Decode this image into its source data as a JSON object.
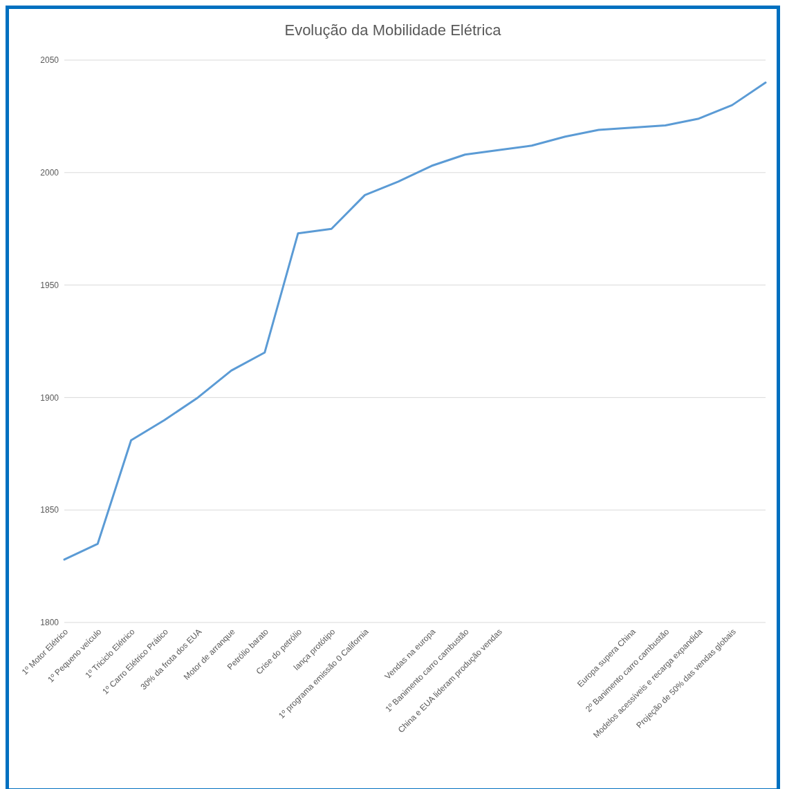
{
  "chart_data": {
    "type": "line",
    "title": "Evolução da Mobilidade Elétrica",
    "categories": [
      "1º Motor Elétrico",
      "1º Pequeno veículo",
      "1º Triciclo Elétrico",
      "1º Carro Elétrico Prático",
      "30% da frota dos EUA",
      "Motor de arranque",
      "Petrólio barato",
      "Crise do petrólio",
      "lança protótipo",
      "1º programa emissão 0 California",
      null,
      "Vendas na europa",
      "1º Banimento carro cambustão",
      "China e EUA lideram produção vendas",
      null,
      null,
      null,
      "Europa supera China",
      "2º Banimento carro cambustão",
      "Modelos acessíveis e recarga expandida",
      "Projeção de 50% das vendas globais",
      null
    ],
    "values": [
      1828,
      1835,
      1881,
      1890,
      1900,
      1912,
      1920,
      1973,
      1975,
      1990,
      1996,
      2003,
      2008,
      2010,
      2012,
      2016,
      2019,
      2020,
      2021,
      2024,
      2030,
      2040
    ],
    "color": "#5b9bd5",
    "ylim": [
      1800,
      2050
    ],
    "yticks": [
      1800,
      1850,
      1900,
      1950,
      2000,
      2050
    ],
    "grid": "y",
    "marker": "none",
    "line_style": "solid"
  }
}
